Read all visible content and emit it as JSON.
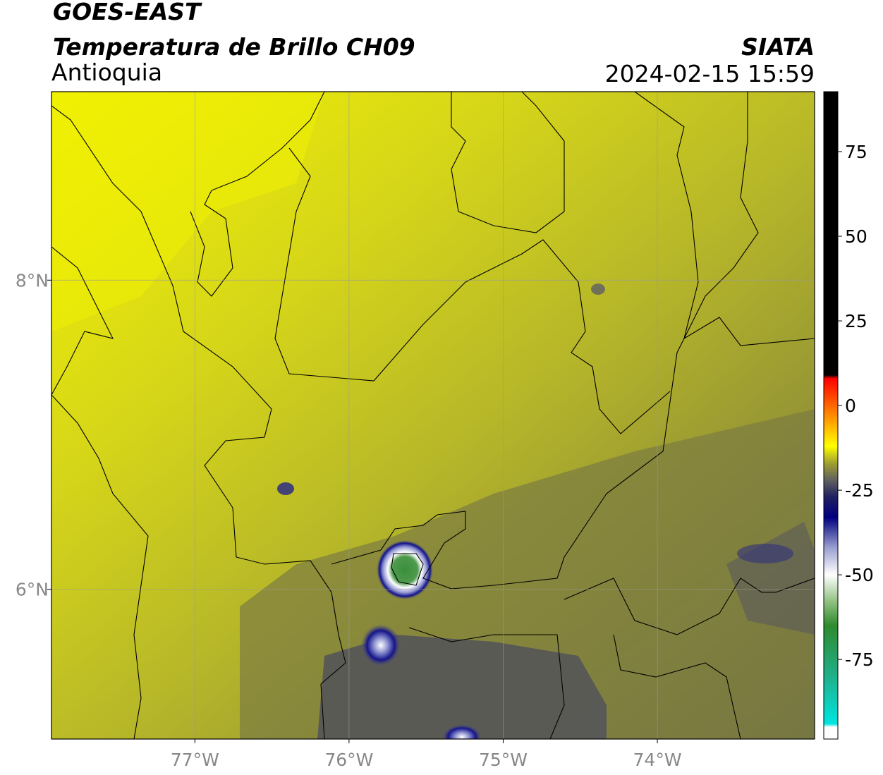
{
  "header": {
    "title": "GOES-EAST",
    "subtitle": "Temperatura de Brillo CH09",
    "region": "Antioquia",
    "source": "SIATA",
    "datetime": "2024-02-15 15:59"
  },
  "chart_data": {
    "type": "map",
    "xlim": [
      -77.93,
      -72.98
    ],
    "ylim": [
      5.03,
      9.22
    ],
    "xticks": [
      {
        "value": -77,
        "label": "77°W"
      },
      {
        "value": -76,
        "label": "76°W"
      },
      {
        "value": -75,
        "label": "75°W"
      },
      {
        "value": -74,
        "label": "74°W"
      }
    ],
    "yticks": [
      {
        "value": 6,
        "label": "6°N"
      },
      {
        "value": 8,
        "label": "8°N"
      }
    ],
    "grid": true,
    "colorbar": {
      "clim": [
        -98.5,
        92.7
      ],
      "ticks": [
        75,
        50,
        25,
        0,
        -25,
        -50,
        -75
      ],
      "colorscale": [
        [
          -98.5,
          "#ffffff"
        ],
        [
          -95,
          "#ffffff"
        ],
        [
          -94,
          "#00e5e0"
        ],
        [
          -80,
          "#20b08a"
        ],
        [
          -65,
          "#2e8b2e"
        ],
        [
          -58,
          "#8fc07f"
        ],
        [
          -50,
          "#ffffff"
        ],
        [
          -42,
          "#9aa0d0"
        ],
        [
          -33,
          "#000080"
        ],
        [
          -27,
          "#202060"
        ],
        [
          -22,
          "#606060"
        ],
        [
          -17,
          "#a0a030"
        ],
        [
          -12,
          "#ffff00"
        ],
        [
          -4,
          "#ff9900"
        ],
        [
          4,
          "#ff3300"
        ],
        [
          8,
          "#ff0000"
        ],
        [
          9,
          "#000000"
        ],
        [
          92.7,
          "#000000"
        ]
      ]
    }
  }
}
